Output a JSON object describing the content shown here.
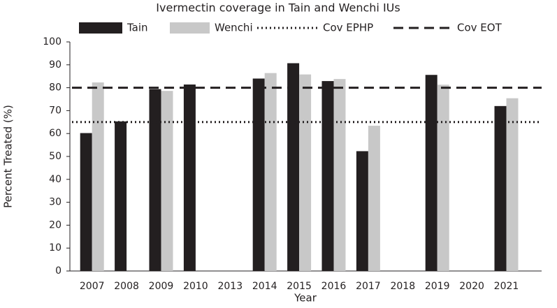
{
  "chart_data": {
    "type": "bar",
    "title": "Ivermectin coverage in Tain and Wenchi IUs",
    "x_label": "Year",
    "y_label": "Percent Treated (%)",
    "categories": [
      "2007",
      "2008",
      "2009",
      "2010",
      "2013",
      "2014",
      "2015",
      "2016",
      "2017",
      "2018",
      "2019",
      "2020",
      "2021"
    ],
    "series": [
      {
        "name": "Tain",
        "color": "#231f20",
        "values": [
          60.2,
          65.3,
          79.4,
          81.4,
          null,
          84,
          90.7,
          82.9,
          52.3,
          null,
          85.6,
          null,
          72
        ]
      },
      {
        "name": "Wenchi",
        "color": "#c8c8c8",
        "values": [
          82.3,
          null,
          78.6,
          null,
          null,
          86.4,
          85.8,
          83.8,
          63.4,
          null,
          81.3,
          null,
          75.4
        ]
      }
    ],
    "reference_lines": [
      {
        "name": "Cov EPHP",
        "value": 65,
        "style": "dotted",
        "color": "#231f20"
      },
      {
        "name": "Cov EOT",
        "value": 80,
        "style": "dashed",
        "color": "#231f20"
      }
    ],
    "ylim": [
      0,
      100
    ],
    "yticks": [
      0,
      10,
      20,
      30,
      40,
      50,
      60,
      70,
      80,
      90,
      100
    ],
    "legend": "top"
  }
}
